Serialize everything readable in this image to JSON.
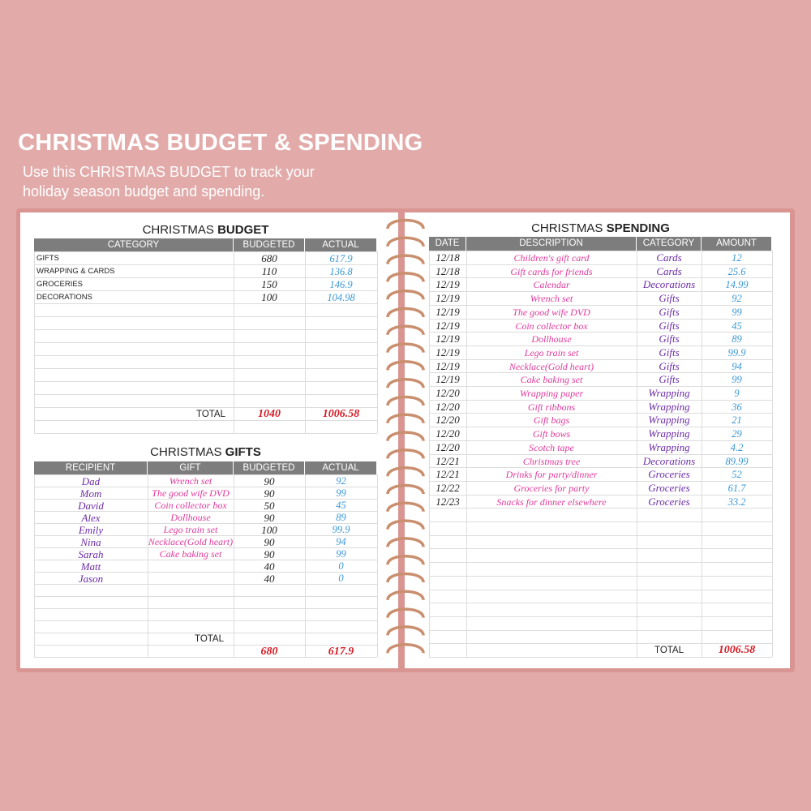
{
  "header": {
    "title": "CHRISTMAS BUDGET & SPENDING",
    "subtitle_lines": [
      "Use this CHRISTMAS BUDGET to track your",
      "holiday season budget and spending."
    ]
  },
  "budget": {
    "title_prefix": "CHRISTMAS",
    "title_bold": "BUDGET",
    "columns": [
      "CATEGORY",
      "BUDGETED",
      "ACTUAL"
    ],
    "rows": [
      {
        "category": "GIFTS",
        "budgeted": 680,
        "actual": 617.9
      },
      {
        "category": "WRAPPING & CARDS",
        "budgeted": 110,
        "actual": 136.8
      },
      {
        "category": "GROCERIES",
        "budgeted": 150,
        "actual": 146.9
      },
      {
        "category": "DECORATIONS",
        "budgeted": 100,
        "actual": 104.98
      }
    ],
    "total_label": "TOTAL",
    "total_budgeted": 1040,
    "total_actual": 1006.58
  },
  "gifts": {
    "title_prefix": "CHRISTMAS",
    "title_bold": "GIFTS",
    "columns": [
      "RECIPIENT",
      "GIFT",
      "BUDGETED",
      "ACTUAL"
    ],
    "rows": [
      {
        "recipient": "Dad",
        "gift": "Wrench set",
        "budgeted": 90,
        "actual": 92
      },
      {
        "recipient": "Mom",
        "gift": "The good wife DVD",
        "budgeted": 90,
        "actual": 99
      },
      {
        "recipient": "David",
        "gift": "Coin collector box",
        "budgeted": 50,
        "actual": 45
      },
      {
        "recipient": "Alex",
        "gift": "Dollhouse",
        "budgeted": 90,
        "actual": 89
      },
      {
        "recipient": "Emily",
        "gift": "Lego train set",
        "budgeted": 100,
        "actual": 99.9
      },
      {
        "recipient": "Nina",
        "gift": "Necklace(Gold heart)",
        "budgeted": 90,
        "actual": 94
      },
      {
        "recipient": "Sarah",
        "gift": "Cake baking set",
        "budgeted": 90,
        "actual": 99
      },
      {
        "recipient": "Matt",
        "budgeted": 40,
        "actual": 0
      },
      {
        "recipient": "Jason",
        "budgeted": 40,
        "actual": 0
      }
    ],
    "total_label": "TOTAL",
    "total_budgeted": 680,
    "total_actual": 617.9
  },
  "spending": {
    "title_prefix": "CHRISTMAS",
    "title_bold": "SPENDING",
    "columns": [
      "DATE",
      "DESCRIPTION",
      "CATEGORY",
      "AMOUNT"
    ],
    "rows": [
      {
        "date": "12/18",
        "description": "Children's gift card",
        "category": "Cards",
        "amount": 12
      },
      {
        "date": "12/18",
        "description": "Gift cards for friends",
        "category": "Cards",
        "amount": 25.6
      },
      {
        "date": "12/19",
        "description": "Calendar",
        "category": "Decorations",
        "amount": 14.99
      },
      {
        "date": "12/19",
        "description": "Wrench set",
        "category": "Gifts",
        "amount": 92
      },
      {
        "date": "12/19",
        "description": "The good wife DVD",
        "category": "Gifts",
        "amount": 99
      },
      {
        "date": "12/19",
        "description": "Coin collector box",
        "category": "Gifts",
        "amount": 45
      },
      {
        "date": "12/19",
        "description": "Dollhouse",
        "category": "Gifts",
        "amount": 89
      },
      {
        "date": "12/19",
        "description": "Lego train set",
        "category": "Gifts",
        "amount": 99.9
      },
      {
        "date": "12/19",
        "description": "Necklace(Gold heart)",
        "category": "Gifts",
        "amount": 94
      },
      {
        "date": "12/19",
        "description": "Cake baking set",
        "category": "Gifts",
        "amount": 99
      },
      {
        "date": "12/20",
        "description": "Wrapping paper",
        "category": "Wrapping",
        "amount": 9
      },
      {
        "date": "12/20",
        "description": "Gift ribbons",
        "category": "Wrapping",
        "amount": 36
      },
      {
        "date": "12/20",
        "description": "Gift bags",
        "category": "Wrapping",
        "amount": 21
      },
      {
        "date": "12/20",
        "description": "Gift bows",
        "category": "Wrapping",
        "amount": 29
      },
      {
        "date": "12/20",
        "description": "Scotch tape",
        "category": "Wrapping",
        "amount": 4.2
      },
      {
        "date": "12/21",
        "description": "Christmas tree",
        "category": "Decorations",
        "amount": 89.99
      },
      {
        "date": "12/21",
        "description": "Drinks for party/dinner",
        "category": "Groceries",
        "amount": 52
      },
      {
        "date": "12/22",
        "description": "Groceries for party",
        "category": "Groceries",
        "amount": 61.7
      },
      {
        "date": "12/23",
        "description": "Snacks for dinner elsewhere",
        "category": "Groceries",
        "amount": 33.2
      }
    ],
    "total_label": "TOTAL",
    "total_amount": 1006.58
  }
}
